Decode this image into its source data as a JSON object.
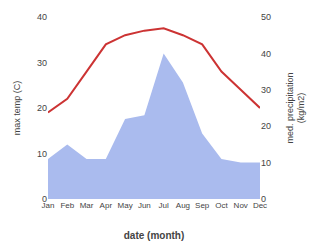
{
  "chart_data": {
    "type": "line",
    "categories": [
      "Jan",
      "Feb",
      "Mar",
      "Apr",
      "May",
      "Jun",
      "Jul",
      "Aug",
      "Sep",
      "Oct",
      "Nov",
      "Dec"
    ],
    "series": [
      {
        "type": "area",
        "axis": "y2",
        "color": "#aabbee",
        "values": [
          11,
          15,
          11,
          11,
          22,
          23,
          40,
          32,
          18,
          11,
          10,
          10
        ]
      },
      {
        "type": "line",
        "color": "#cc3333",
        "values": [
          19,
          22,
          28,
          34,
          36,
          37,
          37.5,
          36,
          34,
          28,
          24,
          20
        ]
      }
    ],
    "xlabel": "date (month)",
    "ylabel": "max temp (C)",
    "y2label": "med. precipitation\n(kg/m2)",
    "ylim": [
      0,
      40
    ],
    "yticks": [
      0,
      10,
      20,
      30,
      40
    ],
    "y2lim": [
      0,
      50
    ],
    "y2ticks": [
      0,
      10,
      20,
      30,
      40,
      50
    ],
    "grid": false
  }
}
